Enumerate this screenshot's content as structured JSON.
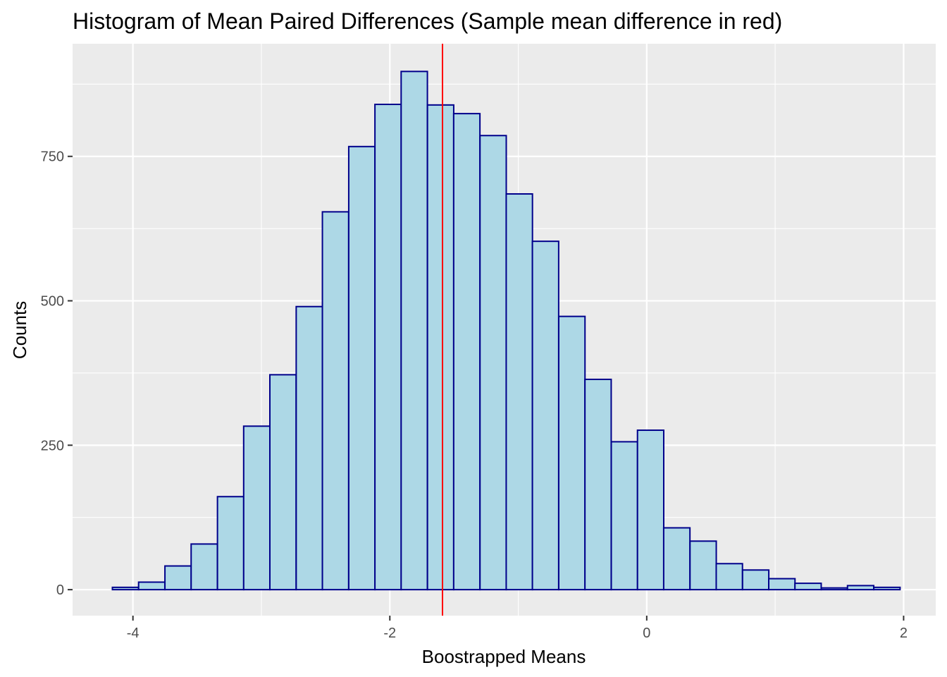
{
  "chart_data": {
    "type": "bar",
    "title": "Histogram of Mean Paired Differences (Sample mean difference in red)",
    "xlabel": "Boostrapped Means",
    "ylabel": "Counts",
    "xlim": [
      -4.47,
      2.25
    ],
    "ylim": [
      -45,
      945
    ],
    "x_ticks": [
      -4,
      -2,
      0,
      2
    ],
    "x_tick_labels": [
      "-4",
      "-2",
      "0",
      "2"
    ],
    "y_ticks": [
      0,
      250,
      500,
      750
    ],
    "y_tick_labels": [
      "0",
      "250",
      "500",
      "750"
    ],
    "bin_width": 0.2044,
    "bins": [
      {
        "x0": -4.16,
        "count": 4
      },
      {
        "x0": -3.956,
        "count": 13
      },
      {
        "x0": -3.751,
        "count": 41
      },
      {
        "x0": -3.547,
        "count": 79
      },
      {
        "x0": -3.342,
        "count": 161
      },
      {
        "x0": -3.138,
        "count": 283
      },
      {
        "x0": -2.934,
        "count": 372
      },
      {
        "x0": -2.729,
        "count": 490
      },
      {
        "x0": -2.525,
        "count": 654
      },
      {
        "x0": -2.32,
        "count": 767
      },
      {
        "x0": -2.116,
        "count": 840
      },
      {
        "x0": -1.912,
        "count": 897
      },
      {
        "x0": -1.707,
        "count": 839
      },
      {
        "x0": -1.503,
        "count": 824
      },
      {
        "x0": -1.298,
        "count": 786
      },
      {
        "x0": -1.094,
        "count": 685
      },
      {
        "x0": -0.89,
        "count": 603
      },
      {
        "x0": -0.685,
        "count": 473
      },
      {
        "x0": -0.481,
        "count": 364
      },
      {
        "x0": -0.276,
        "count": 256
      },
      {
        "x0": -0.072,
        "count": 276
      },
      {
        "x0": 0.132,
        "count": 107
      },
      {
        "x0": 0.337,
        "count": 84
      },
      {
        "x0": 0.541,
        "count": 45
      },
      {
        "x0": 0.746,
        "count": 34
      },
      {
        "x0": 0.95,
        "count": 19
      },
      {
        "x0": 1.154,
        "count": 11
      },
      {
        "x0": 1.359,
        "count": 3
      },
      {
        "x0": 1.563,
        "count": 7
      },
      {
        "x0": 1.768,
        "count": 4
      }
    ],
    "reference_line": {
      "x": -1.59,
      "color": "#ff0000"
    },
    "grid": true,
    "legend": "none",
    "colors": {
      "bar_fill": "#add8e6",
      "bar_outline": "#00008b",
      "panel_background": "#ebebeb",
      "grid": "#ffffff"
    }
  }
}
